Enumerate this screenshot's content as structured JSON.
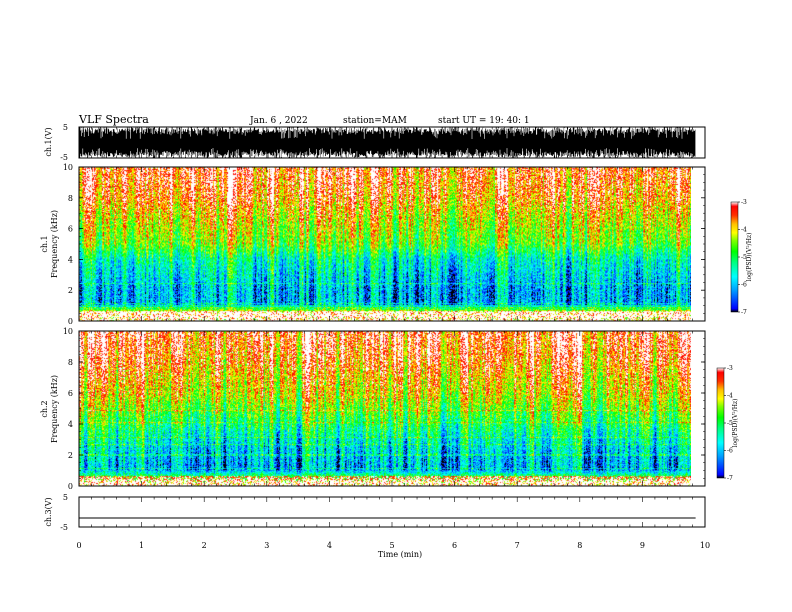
{
  "header": {
    "title": "VLF Spectra",
    "date": "Jan. 6 , 2022",
    "station": "station=MAM",
    "start": "start UT = 19: 40: 1"
  },
  "colors": {
    "colormap": [
      "#000000",
      "#0000ff",
      "#00a0ff",
      "#00ffff",
      "#00ff80",
      "#00ff00",
      "#80ff00",
      "#ffff00",
      "#ffc000",
      "#ff6000",
      "#ff0000",
      "#ffffff"
    ]
  },
  "chart_data": [
    {
      "type": "line",
      "id": "ch1-waveform",
      "ylabel": "ch.1(V)",
      "ylim": [
        -5,
        5
      ],
      "yticks": [
        "5",
        "-5"
      ],
      "xlim": [
        0,
        10
      ],
      "description_values": {
        "clipped_amplitude": [
          -5,
          5
        ],
        "dense_noise": true
      }
    },
    {
      "type": "heatmap",
      "id": "ch1-spectrogram",
      "ylabel": "ch.1\nFrequency (kHz)",
      "ylabel_line1": "ch.1",
      "ylabel_line2": "Frequency (kHz)",
      "ylim": [
        0,
        10
      ],
      "yticks": [
        "0",
        "2",
        "4",
        "6",
        "8",
        "10"
      ],
      "xlim": [
        0,
        9.85
      ],
      "colorbar": {
        "label": "log(PSD)(V²/Hz)",
        "range": [
          -7,
          -3
        ],
        "ticks": [
          "-3",
          "-4",
          "-5",
          "-6",
          "-7"
        ]
      },
      "profile_log_psd_by_freq_khz": [
        [
          0.2,
          -4.0
        ],
        [
          0.5,
          -3.6
        ],
        [
          1.0,
          -6.0
        ],
        [
          2.0,
          -6.0
        ],
        [
          3.0,
          -5.7
        ],
        [
          4.0,
          -5.4
        ],
        [
          5.0,
          -4.5
        ],
        [
          6.0,
          -4.2
        ],
        [
          7.0,
          -3.9
        ],
        [
          8.0,
          -3.5
        ],
        [
          10.0,
          -3.2
        ]
      ]
    },
    {
      "type": "heatmap",
      "id": "ch2-spectrogram",
      "ylabel": "ch.2\nFrequency (kHz)",
      "ylabel_line1": "ch.2",
      "ylabel_line2": "Frequency (kHz)",
      "ylim": [
        0,
        10
      ],
      "yticks": [
        "0",
        "2",
        "4",
        "6",
        "8",
        "10"
      ],
      "xlim": [
        0,
        9.85
      ],
      "colorbar": {
        "label": "log(PSD)(V²/Hz)",
        "range": [
          -7,
          -3
        ],
        "ticks": [
          "-3",
          "-4",
          "-5",
          "-6",
          "-7"
        ]
      },
      "profile_log_psd_by_freq_khz": [
        [
          0.2,
          -3.9
        ],
        [
          1.0,
          -6.1
        ],
        [
          2.0,
          -5.9
        ],
        [
          3.0,
          -5.5
        ],
        [
          4.0,
          -5.0
        ],
        [
          5.0,
          -4.5
        ],
        [
          6.0,
          -4.0
        ],
        [
          7.0,
          -3.8
        ],
        [
          8.0,
          -3.5
        ],
        [
          10.0,
          -3.2
        ]
      ]
    },
    {
      "type": "line",
      "id": "ch3-waveform",
      "ylabel": "ch.3(V)",
      "ylim": [
        -5,
        5
      ],
      "yticks": [
        "5",
        "-5"
      ],
      "xlim": [
        0,
        10
      ],
      "x": [
        0,
        9.85
      ],
      "y": [
        -2,
        -2
      ]
    }
  ],
  "xaxis": {
    "label": "Time (min)",
    "range": [
      0,
      10
    ],
    "ticks": [
      "0",
      "1",
      "2",
      "3",
      "4",
      "5",
      "6",
      "7",
      "8",
      "9",
      "10"
    ]
  }
}
